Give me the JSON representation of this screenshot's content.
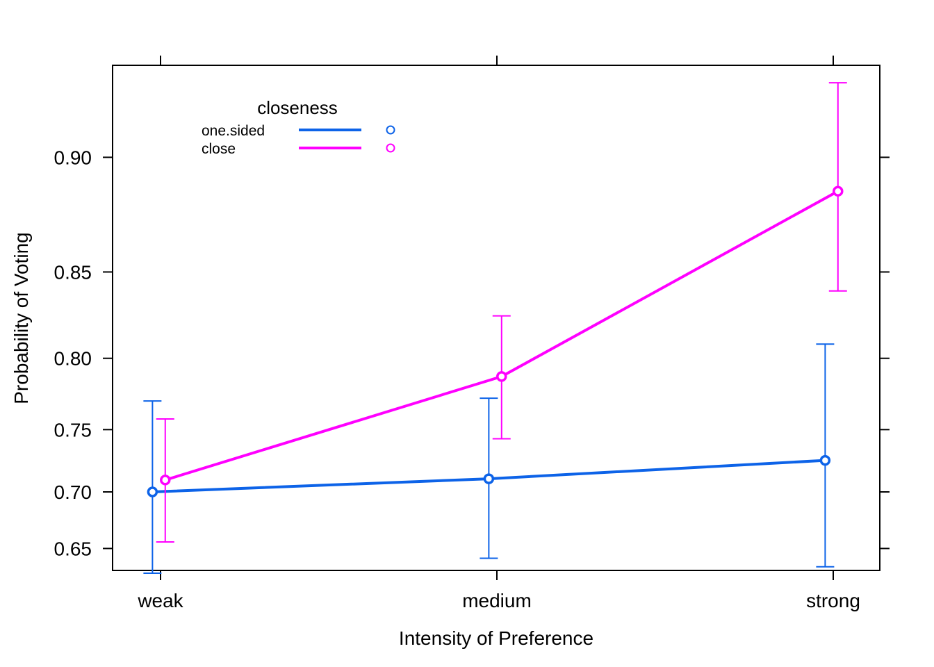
{
  "chart_data": {
    "type": "line",
    "xlabel": "Intensity of Preference",
    "ylabel": "Probability of Voting",
    "categories": [
      "weak",
      "medium",
      "strong"
    ],
    "yticks": [
      "0.65",
      "0.70",
      "0.75",
      "0.80",
      "0.85",
      "0.90"
    ],
    "ytick_values": [
      0.65,
      0.7,
      0.75,
      0.8,
      0.85,
      0.9
    ],
    "ylim": [
      0.6296,
      0.9288
    ],
    "scale": "logit",
    "grid": false,
    "legend": {
      "title": "closeness",
      "placement": "top-left"
    },
    "series": [
      {
        "name": "one.sided",
        "color": "#0d63e8",
        "values": [
          0.7,
          0.711,
          0.726
        ],
        "lower": [
          0.627,
          0.641,
          0.633
        ],
        "upper": [
          0.771,
          0.773,
          0.809
        ],
        "x_offset": -0.012
      },
      {
        "name": "close",
        "color": "#ff00ff",
        "values": [
          0.71,
          0.788,
          0.887
        ],
        "lower": [
          0.656,
          0.743,
          0.84
        ],
        "upper": [
          0.758,
          0.826,
          0.924
        ],
        "x_offset": 0.007
      }
    ]
  }
}
